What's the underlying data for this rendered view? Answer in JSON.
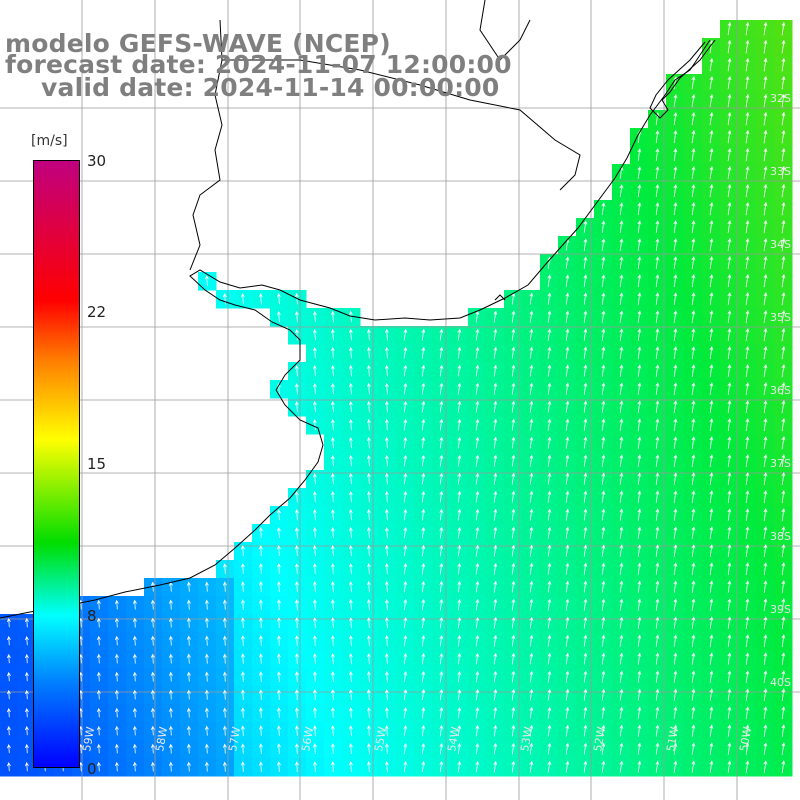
{
  "title": {
    "line1": "modelo GEFS-WAVE (NCEP)",
    "line2": "forecast date: 2024-11-07 12:00:00",
    "line3": "valid date: 2024-11-14 00:00:00"
  },
  "colorbar": {
    "unit": "[m/s]",
    "ticks": [
      "30",
      "22",
      "15",
      "8",
      "0"
    ],
    "range": [
      0,
      30
    ],
    "colors": [
      "#0000ff",
      "#0080ff",
      "#00ffff",
      "#00dd00",
      "#ffff00",
      "#ff7f00",
      "#ff0000",
      "#c0007f"
    ]
  },
  "map": {
    "variable": "wind speed with direction arrows",
    "land_color": "#ffffff",
    "coastline_color": "#000000",
    "grid_color": "#999999",
    "lon_labels": [
      "59W",
      "58W",
      "57W",
      "56W",
      "55W",
      "54W",
      "53W",
      "52W",
      "51W",
      "50W"
    ],
    "lat_labels": [
      "32S",
      "33S",
      "34S",
      "35S",
      "36S",
      "37S",
      "38S",
      "39S",
      "40S"
    ],
    "speed_range_shown": [
      5,
      13
    ],
    "arrow_direction": "northward / north-northeast"
  }
}
